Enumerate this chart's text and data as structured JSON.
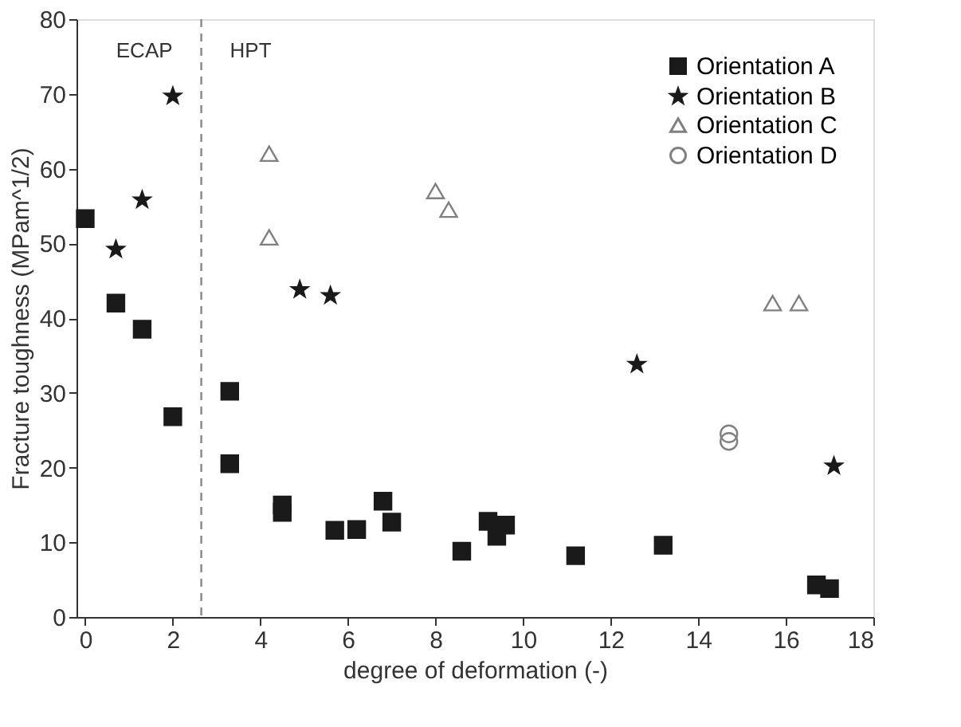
{
  "chart_data": {
    "type": "scatter",
    "xlabel": "degree of deformation (-)",
    "ylabel": "Fracture toughness (MPam^1/2)",
    "xlim": [
      -0.2,
      18
    ],
    "xticks": [
      0,
      2,
      4,
      6,
      8,
      10,
      12,
      14,
      16,
      18
    ],
    "ylim": [
      0,
      80
    ],
    "yticks": [
      0,
      10,
      20,
      30,
      40,
      50,
      60,
      70,
      80
    ],
    "grid": false,
    "legend": "top right",
    "ref_lines": [
      {
        "axis": "x",
        "value": 2.65,
        "color": "#888888",
        "line_style": "dashed"
      }
    ],
    "annotations": [
      "ECAP",
      "HPT"
    ],
    "series": [
      {
        "name": "Orientation A",
        "color": "#1a1a1a",
        "marker": "square",
        "x": [
          0,
          0.7,
          1.3,
          2,
          3.3,
          3.3,
          4.5,
          4.5,
          5.7,
          6.2,
          6.8,
          7.0,
          8.6,
          9.2,
          9.4,
          9.6,
          11.2,
          13.2,
          16.7,
          17.0
        ],
        "values": [
          53.3,
          42,
          38.5,
          26.8,
          30.2,
          20.5,
          15,
          14,
          11.6,
          11.7,
          15.5,
          12.7,
          8.8,
          12.8,
          10.8,
          12.3,
          8.2,
          9.6,
          4.3,
          3.8
        ]
      },
      {
        "name": "Orientation B",
        "color": "#1a1a1a",
        "marker": "star",
        "x": [
          0.7,
          1.3,
          2,
          4.9,
          5.6,
          12.6,
          17.1
        ],
        "values": [
          49.2,
          55.8,
          69.7,
          43.8,
          43,
          33.8,
          20.2
        ]
      },
      {
        "name": "Orientation C",
        "color": "#808080",
        "marker": "triangle",
        "x": [
          4.2,
          4.2,
          8.0,
          8.3,
          15.7,
          16.3
        ],
        "values": [
          62,
          50.8,
          57,
          54.5,
          42,
          42
        ]
      },
      {
        "name": "Orientation D",
        "color": "#808080",
        "marker": "circle",
        "x": [
          14.7,
          14.7
        ],
        "values": [
          24.5,
          23.5
        ]
      }
    ]
  }
}
